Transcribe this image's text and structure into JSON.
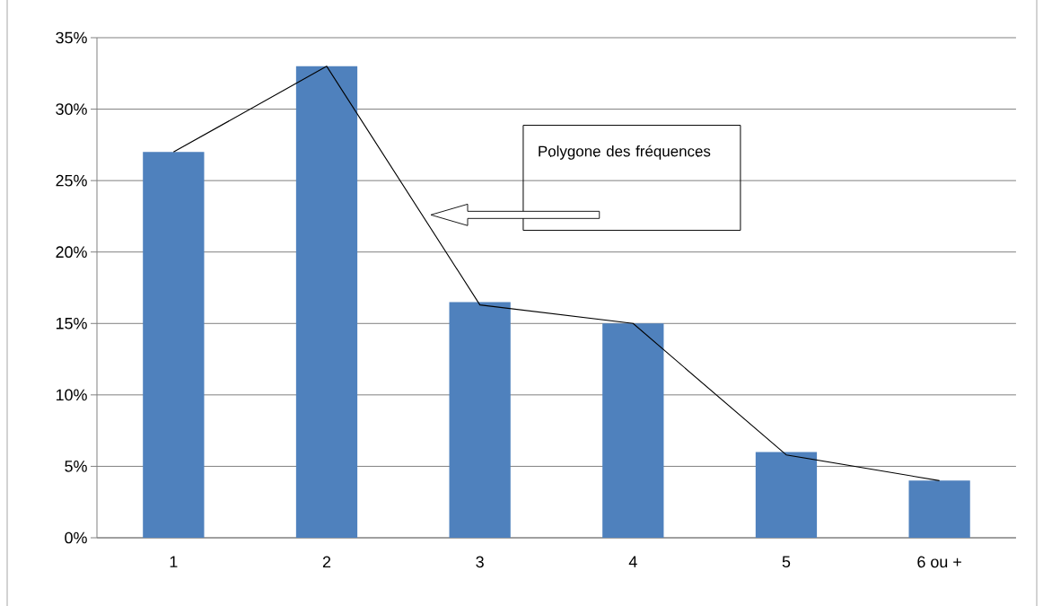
{
  "chart_data": {
    "type": "bar",
    "categories": [
      "1",
      "2",
      "3",
      "4",
      "5",
      "6 ou +"
    ],
    "series": [
      {
        "color": "#4f81bd",
        "values": [
          27,
          33,
          16.5,
          15,
          6,
          4
        ]
      },
      {
        "type": "line",
        "color": "#000000",
        "values": [
          27,
          33,
          16.3,
          15,
          5.8,
          4
        ],
        "marker": "none",
        "line_style": "solid"
      }
    ],
    "ylim": [
      0,
      35
    ],
    "yticks": [
      {
        "value": 0,
        "label": "0%"
      },
      {
        "value": 5,
        "label": "5%"
      },
      {
        "value": 10,
        "label": "10%"
      },
      {
        "value": 15,
        "label": "15%"
      },
      {
        "value": 20,
        "label": "20%"
      },
      {
        "value": 25,
        "label": "25%"
      },
      {
        "value": 30,
        "label": "30%"
      },
      {
        "value": 35,
        "label": "35%"
      }
    ],
    "grid": "y",
    "annotations": [
      "Polygone des fréquences"
    ]
  }
}
